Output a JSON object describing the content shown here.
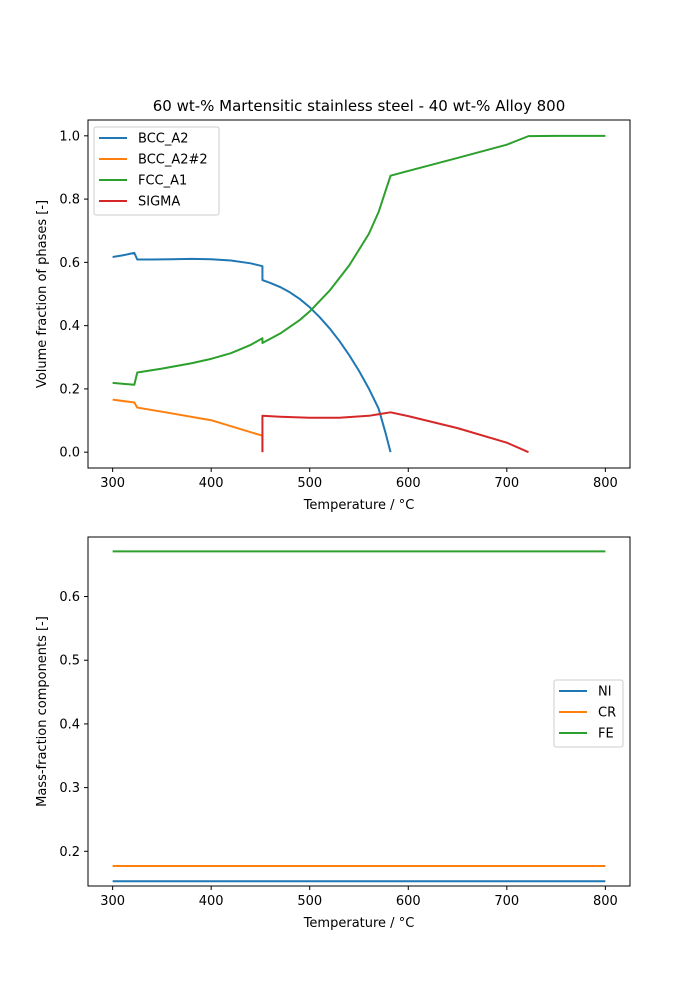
{
  "chart_data": [
    {
      "type": "line",
      "title": "60 wt-% Martensitic stainless steel - 40 wt-% Alloy 800",
      "xlabel": "Temperature / °C",
      "ylabel": "Volume fraction of phases [-]",
      "xlim": [
        275,
        825
      ],
      "ylim": [
        -0.05,
        1.05
      ],
      "xticks": [
        300,
        400,
        500,
        600,
        700,
        800
      ],
      "yticks": [
        0.0,
        0.2,
        0.4,
        0.6,
        0.8,
        1.0
      ],
      "tick_format_decimals": 1,
      "legend_location": "upper left",
      "grid": false,
      "series": [
        {
          "name": "BCC_A2",
          "color": "#1f77b4",
          "points": [
            [
              300,
              0.617
            ],
            [
              310,
              0.622
            ],
            [
              322,
              0.63
            ],
            [
              325,
              0.609
            ],
            [
              340,
              0.609
            ],
            [
              360,
              0.61
            ],
            [
              380,
              0.611
            ],
            [
              400,
              0.61
            ],
            [
              420,
              0.606
            ],
            [
              440,
              0.597
            ],
            [
              452,
              0.588
            ],
            [
              452,
              0.544
            ],
            [
              460,
              0.535
            ],
            [
              470,
              0.522
            ],
            [
              480,
              0.505
            ],
            [
              490,
              0.484
            ],
            [
              500,
              0.458
            ],
            [
              510,
              0.427
            ],
            [
              520,
              0.392
            ],
            [
              530,
              0.352
            ],
            [
              540,
              0.307
            ],
            [
              550,
              0.257
            ],
            [
              560,
              0.201
            ],
            [
              570,
              0.137
            ],
            [
              577,
              0.06
            ],
            [
              582,
              0.0
            ]
          ]
        },
        {
          "name": "BCC_A2#2",
          "color": "#ff7f0e",
          "points": [
            [
              300,
              0.166
            ],
            [
              322,
              0.157
            ],
            [
              325,
              0.141
            ],
            [
              350,
              0.128
            ],
            [
              400,
              0.101
            ],
            [
              452,
              0.052
            ],
            [
              452,
              0.0
            ]
          ]
        },
        {
          "name": "FCC_A1",
          "color": "#2ca02c",
          "points": [
            [
              300,
              0.219
            ],
            [
              322,
              0.213
            ],
            [
              325,
              0.252
            ],
            [
              350,
              0.264
            ],
            [
              380,
              0.281
            ],
            [
              400,
              0.295
            ],
            [
              420,
              0.313
            ],
            [
              440,
              0.339
            ],
            [
              452,
              0.36
            ],
            [
              452,
              0.345
            ],
            [
              470,
              0.375
            ],
            [
              490,
              0.418
            ],
            [
              500,
              0.445
            ],
            [
              520,
              0.51
            ],
            [
              540,
              0.59
            ],
            [
              560,
              0.69
            ],
            [
              570,
              0.76
            ],
            [
              582,
              0.874
            ],
            [
              600,
              0.889
            ],
            [
              650,
              0.93
            ],
            [
              700,
              0.972
            ],
            [
              722,
              0.999
            ],
            [
              750,
              1.0
            ],
            [
              800,
              1.0
            ]
          ]
        },
        {
          "name": "SIGMA",
          "color": "#d62728",
          "points": [
            [
              452,
              0.0
            ],
            [
              452,
              0.115
            ],
            [
              470,
              0.112
            ],
            [
              500,
              0.109
            ],
            [
              530,
              0.109
            ],
            [
              560,
              0.115
            ],
            [
              582,
              0.126
            ],
            [
              600,
              0.114
            ],
            [
              650,
              0.076
            ],
            [
              700,
              0.03
            ],
            [
              722,
              0.0
            ]
          ]
        }
      ]
    },
    {
      "type": "line",
      "title": "",
      "xlabel": "Temperature / °C",
      "ylabel": "Mass-fraction components [-]",
      "xlim": [
        275,
        825
      ],
      "ylim": [
        0.1455,
        0.6935
      ],
      "xticks": [
        300,
        400,
        500,
        600,
        700,
        800
      ],
      "yticks": [
        0.2,
        0.3,
        0.4,
        0.5,
        0.6
      ],
      "tick_format_decimals": 1,
      "legend_location": "center right",
      "grid": false,
      "series": [
        {
          "name": "NI",
          "color": "#1f77b4",
          "points": [
            [
              300,
              0.153
            ],
            [
              800,
              0.153
            ]
          ]
        },
        {
          "name": "CR",
          "color": "#ff7f0e",
          "points": [
            [
              300,
              0.177
            ],
            [
              800,
              0.177
            ]
          ]
        },
        {
          "name": "FE",
          "color": "#2ca02c",
          "points": [
            [
              300,
              0.671
            ],
            [
              800,
              0.671
            ]
          ]
        }
      ]
    }
  ]
}
